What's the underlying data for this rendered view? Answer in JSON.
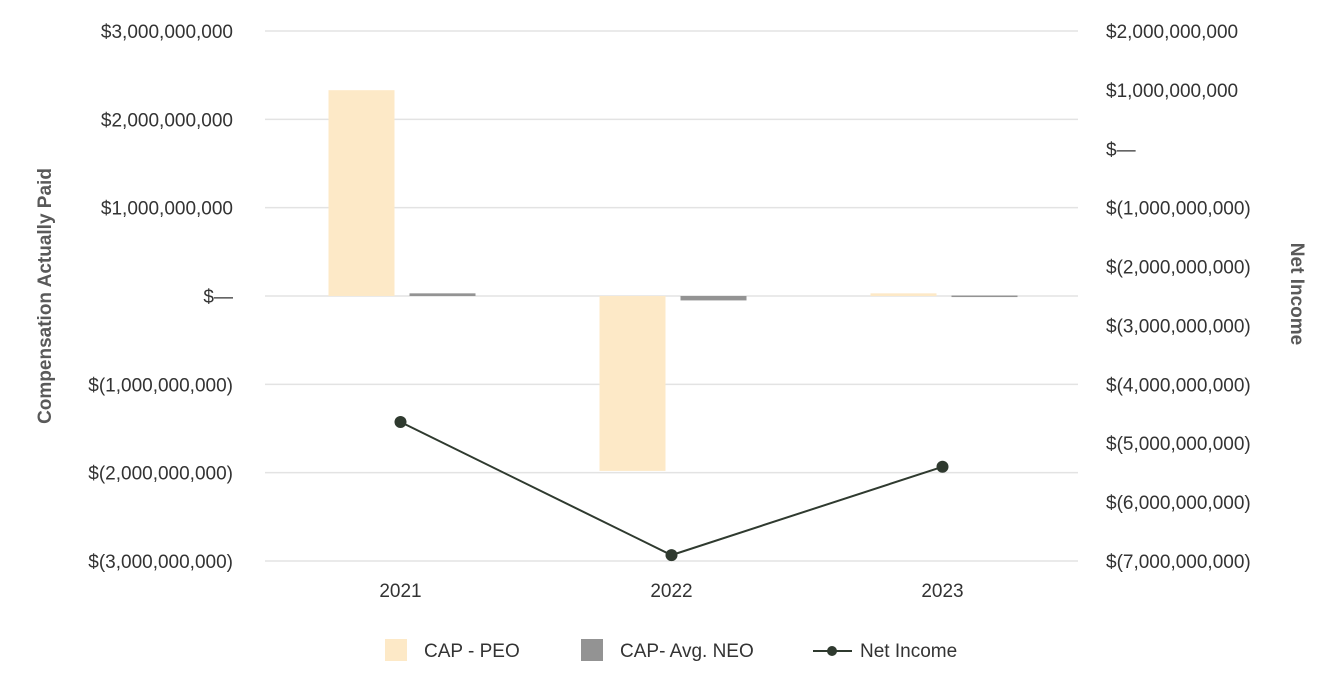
{
  "chart_data": {
    "type": "bar",
    "categories": [
      "2021",
      "2022",
      "2023"
    ],
    "series": [
      {
        "name": "CAP - PEO",
        "axis": "left",
        "kind": "bar",
        "values": [
          2330000000,
          -1980000000,
          30000000
        ]
      },
      {
        "name": "CAP- Avg. NEO",
        "axis": "left",
        "kind": "bar",
        "values": [
          30000000,
          -50000000,
          5000000
        ]
      },
      {
        "name": "Net Income",
        "axis": "right",
        "kind": "line",
        "values": [
          -4640000000,
          -6900000000,
          -5400000000
        ]
      }
    ],
    "ylabel": "Compensation Actually Paid",
    "ylabel_right": "Net Income",
    "ylim": [
      -3000000000,
      3000000000
    ],
    "ylim_right": [
      -7000000000,
      2000000000
    ],
    "yticks_left": [
      "$3,000,000,000",
      "$2,000,000,000",
      "$1,000,000,000",
      "$—",
      "$(1,000,000,000)",
      "$(2,000,000,000)",
      "$(3,000,000,000)"
    ],
    "yticks_right": [
      "$2,000,000,000",
      "$1,000,000,000",
      "$—",
      "$(1,000,000,000)",
      "$(2,000,000,000)",
      "$(3,000,000,000)",
      "$(4,000,000,000)",
      "$(5,000,000,000)",
      "$(6,000,000,000)",
      "$(7,000,000,000)"
    ],
    "grid": true,
    "legend_position": "bottom",
    "colors": {
      "peo": "#fde9c7",
      "neo": "#939393",
      "net_income": "#2f3a2f",
      "grid": "#e3e3e3"
    }
  }
}
